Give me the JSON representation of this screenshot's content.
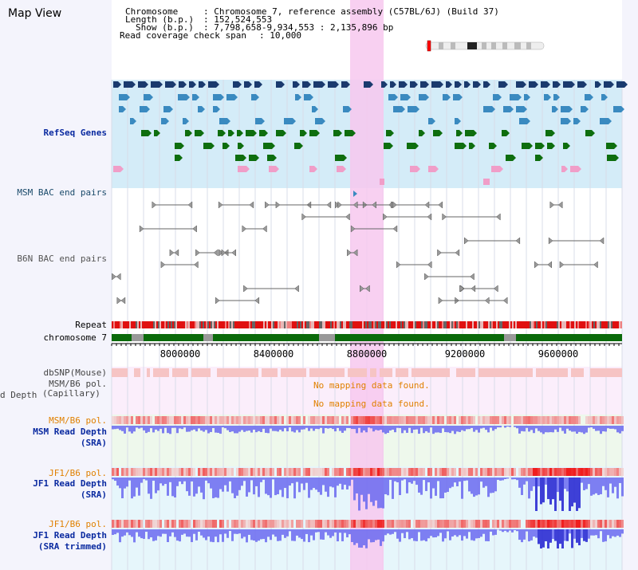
{
  "title": "Map View",
  "header": {
    "chromosome_label": "Chromosome",
    "chromosome_value": ": Chromosome 7, reference assembly (C57BL/6J) (Build 37)",
    "length_label": "Length (b.p.)",
    "length_value": ": 152,524,553",
    "show_label": "Show (b.p.)",
    "show_value": ": 7,798,658-9,934,553 : 2,135,896 bp",
    "coverage_label": "Read coverage check span",
    "coverage_value": ": 10,000"
  },
  "tracks": {
    "refseq": "RefSeq Genes",
    "msm_bac": "MSM BAC end pairs",
    "b6n_bac": "B6N BAC end pairs",
    "repeat": "Repeat",
    "chromosome": "chromosome 7",
    "dbsnp": "dbSNP(Mouse)",
    "msm_pol_1": "MSM/B6 pol.",
    "read_depth_cap": "d Depth",
    "read_depth_cap2": "(Capillary)",
    "msm_pol_2": "MSM/B6 pol.",
    "msm_depth": "MSM Read Depth",
    "msm_depth_sub": "(SRA)",
    "jf1_pol_1": "JF1/B6 pol.",
    "jf1_depth": "JF1 Read Depth",
    "jf1_depth_sub": "(SRA)",
    "jf1_pol_2": "JF1/B6 pol.",
    "jf1_depth2": "JF1 Read Depth",
    "jf1_depth2_sub": "(SRA trimmed)"
  },
  "no_data_1": "No mapping data found.",
  "no_data_2": "No mapping data found.",
  "axis_ticks": [
    "8000000",
    "8400000",
    "8800000",
    "9200000",
    "9600000"
  ],
  "colors": {
    "gene_dark": "#1a3a6e",
    "gene_mid": "#3a8ac0",
    "gene_green": "#0e6e0e",
    "gene_pink": "#f09ec8",
    "highlight": "#f7c8ee",
    "refseq_bg": "#d4ecf8",
    "repeat_red": "#e01010",
    "chrom_green": "#0a6a0a",
    "depth_blue": "#6a6af0",
    "depth_dark": "#2020d0",
    "label_blue": "#0a2aa0",
    "label_orange": "#e08000"
  }
}
